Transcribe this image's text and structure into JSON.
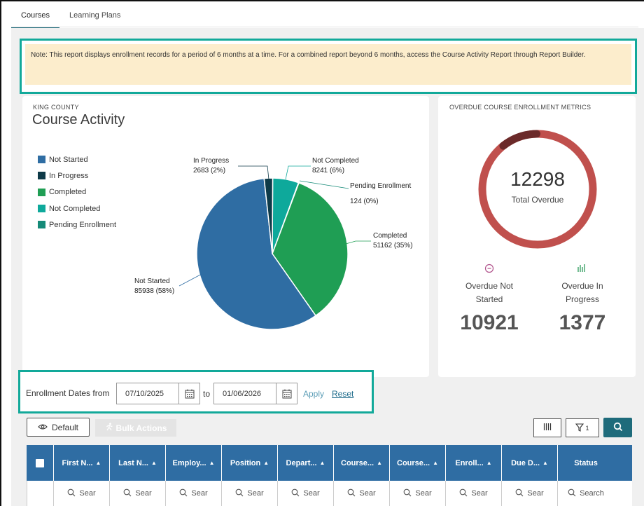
{
  "tabs": [
    {
      "label": "Courses",
      "active": true
    },
    {
      "label": "Learning Plans",
      "active": false
    }
  ],
  "note": "Note: This report displays enrollment records for a period of 6 months at a time. For a combined report beyond 6 months, access the Course Activity Report through Report Builder.",
  "activity": {
    "org": "KING COUNTY",
    "title": "Course Activity"
  },
  "chart_data": {
    "type": "pie",
    "title": "Course Activity",
    "categories": [
      "Not Started",
      "In Progress",
      "Completed",
      "Not Completed",
      "Pending Enrollment"
    ],
    "values": [
      85938,
      2683,
      51162,
      8241,
      124
    ],
    "percents": [
      "58%",
      "2%",
      "35%",
      "6%",
      "0%"
    ],
    "colors": [
      "#2f6da3",
      "#0e3a48",
      "#1f9e54",
      "#0ea99b",
      "#158a78"
    ],
    "labels": {
      "not_started": [
        "Not Started",
        "85938 (58%)"
      ],
      "in_progress": [
        "In Progress",
        "2683 (2%)"
      ],
      "not_completed": [
        "Not Completed",
        "8241 (6%)"
      ],
      "pending": [
        "Pending Enrollment",
        "124 (0%)"
      ],
      "completed": [
        "Completed",
        "51162 (35%)"
      ]
    }
  },
  "overdue": {
    "title": "OVERDUE COURSE ENROLLMENT METRICS",
    "total": "12298",
    "total_label": "Total Overdue",
    "not_started_label_1": "Overdue Not",
    "not_started_label_2": "Started",
    "not_started_value": "10921",
    "in_progress_label_1": "Overdue In",
    "in_progress_label_2": "Progress",
    "in_progress_value": "1377",
    "colors": {
      "ring": "#c0504d",
      "segment": "#6b2a2a"
    }
  },
  "filter": {
    "label": "Enrollment Dates from",
    "from": "07/10/2025",
    "to_label": "to",
    "to": "01/06/2026",
    "apply": "Apply",
    "reset": "Reset"
  },
  "toolbar": {
    "default_label": "Default",
    "bulk_label": "Bulk Actions",
    "filter_count": "1"
  },
  "grid": {
    "columns": [
      "First N...",
      "Last N...",
      "Employ...",
      "Position",
      "Depart...",
      "Course...",
      "Course...",
      "Enroll...",
      "Due D...",
      "Status"
    ],
    "search_placeholders": [
      "Sear",
      "Sear",
      "Sear",
      "Sear",
      "Sear",
      "Sear",
      "Sear",
      "Sear",
      "Sear",
      "Search"
    ]
  }
}
